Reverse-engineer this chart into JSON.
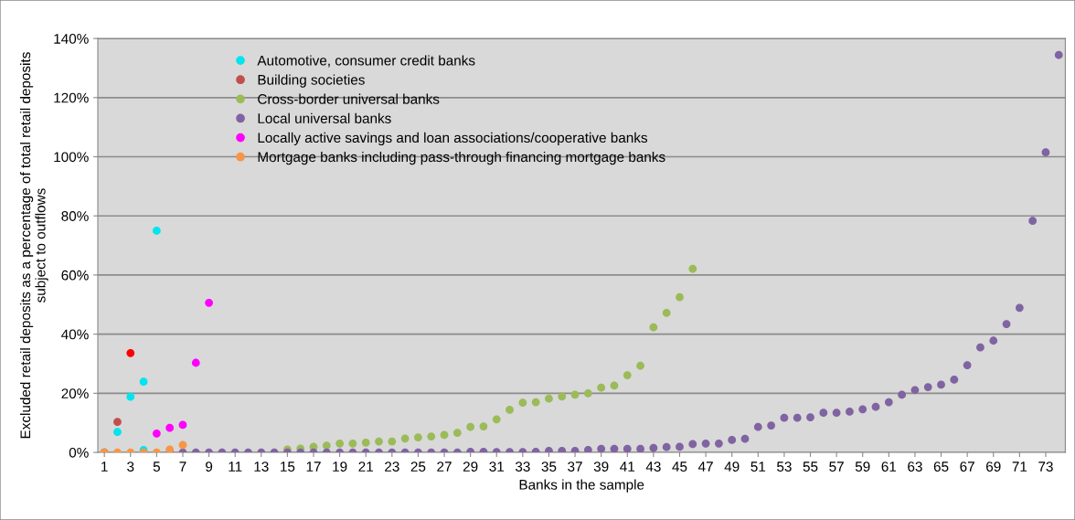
{
  "chart_data": {
    "type": "scatter",
    "xlabel": "Banks in the sample",
    "ylabel": "Excluded retail deposits as a percentage of total retail deposits\nsubject to outflows",
    "xlim": [
      0.5,
      74.5
    ],
    "xticks": [
      1,
      3,
      5,
      7,
      9,
      11,
      13,
      15,
      17,
      19,
      21,
      23,
      25,
      27,
      29,
      31,
      33,
      35,
      37,
      39,
      41,
      43,
      45,
      47,
      49,
      51,
      53,
      55,
      57,
      59,
      61,
      63,
      65,
      67,
      69,
      71,
      73
    ],
    "ylim": [
      0,
      140
    ],
    "yticks": [
      {
        "value": 0,
        "label": "0%"
      },
      {
        "value": 20,
        "label": "20%"
      },
      {
        "value": 40,
        "label": "40%"
      },
      {
        "value": 60,
        "label": "60%"
      },
      {
        "value": 80,
        "label": "80%"
      },
      {
        "value": 100,
        "label": "100%"
      },
      {
        "value": 120,
        "label": "120%"
      },
      {
        "value": 140,
        "label": "140%"
      }
    ],
    "grid": "y",
    "legend": "top left",
    "marker": "circle",
    "series": [
      {
        "name": "Automotive, consumer credit banks",
        "color": "#00e5ee",
        "x": [
          1,
          2,
          3,
          4,
          4,
          5
        ],
        "values": [
          0,
          6.9,
          18.8,
          23.9,
          0.8,
          75.0
        ]
      },
      {
        "name": "Building societies",
        "color": "#c0504d",
        "colors": [
          "#c0504d",
          "#c0504d",
          "#ff0000"
        ],
        "x": [
          1,
          2,
          3
        ],
        "values": [
          0,
          10.3,
          33.6
        ]
      },
      {
        "name": "Cross-border universal banks",
        "color": "#9bbb59",
        "x": [
          15,
          16,
          17,
          18,
          19,
          20,
          21,
          22,
          23,
          24,
          25,
          26,
          27,
          28,
          29,
          30,
          31,
          32,
          33,
          34,
          35,
          36,
          37,
          38,
          39,
          40,
          41,
          42,
          43,
          44,
          45,
          46
        ],
        "values": [
          1.0,
          1.3,
          1.9,
          2.3,
          3.0,
          3.0,
          3.3,
          3.7,
          3.7,
          4.7,
          5.1,
          5.4,
          5.9,
          6.6,
          8.6,
          8.8,
          11.2,
          14.4,
          16.8,
          17.0,
          18.2,
          18.9,
          19.5,
          20.0,
          21.9,
          22.6,
          26.1,
          29.3,
          42.3,
          47.2,
          52.5,
          62.1
        ]
      },
      {
        "name": "Local universal banks",
        "color": "#8064a2",
        "x": [
          6,
          7,
          8,
          9,
          10,
          11,
          12,
          13,
          14,
          15,
          16,
          17,
          18,
          19,
          20,
          21,
          22,
          23,
          24,
          25,
          26,
          27,
          28,
          29,
          30,
          31,
          32,
          33,
          34,
          35,
          36,
          37,
          38,
          39,
          40,
          41,
          42,
          43,
          44,
          45,
          46,
          47,
          48,
          49,
          50,
          51,
          52,
          53,
          54,
          55,
          56,
          57,
          58,
          59,
          60,
          61,
          62,
          63,
          64,
          65,
          66,
          67,
          68,
          69,
          70,
          71,
          72,
          73,
          74
        ],
        "values": [
          0,
          0,
          0,
          0,
          0,
          0,
          0,
          0,
          0,
          0,
          0,
          0,
          0,
          0,
          0,
          0,
          0,
          0,
          0,
          0,
          0,
          0,
          0,
          0.2,
          0.2,
          0.1,
          0.1,
          0.1,
          0.2,
          0.5,
          0.5,
          0.5,
          0.8,
          1.2,
          1.2,
          1.2,
          1.2,
          1.5,
          1.8,
          1.9,
          2.8,
          3.0,
          3.0,
          4.2,
          4.6,
          8.6,
          9.1,
          11.7,
          11.7,
          11.9,
          13.4,
          13.4,
          13.8,
          14.6,
          15.4,
          17.0,
          19.5,
          21.1,
          22.1,
          22.9,
          24.6,
          29.5,
          35.5,
          37.8,
          43.4,
          48.9,
          78.3,
          101.5,
          134.4
        ]
      },
      {
        "name": "Locally active savings and loan associations/cooperative banks",
        "color": "#ff00ff",
        "x": [
          5,
          6,
          7,
          8,
          9
        ],
        "values": [
          6.4,
          8.3,
          9.3,
          30.3,
          50.6
        ]
      },
      {
        "name": "Mortgage banks including pass-through financing mortgage banks",
        "color": "#f79646",
        "x": [
          1,
          2,
          3,
          4,
          5,
          6,
          7
        ],
        "values": [
          0,
          0,
          0,
          0,
          0,
          1.0,
          2.5
        ]
      }
    ]
  }
}
